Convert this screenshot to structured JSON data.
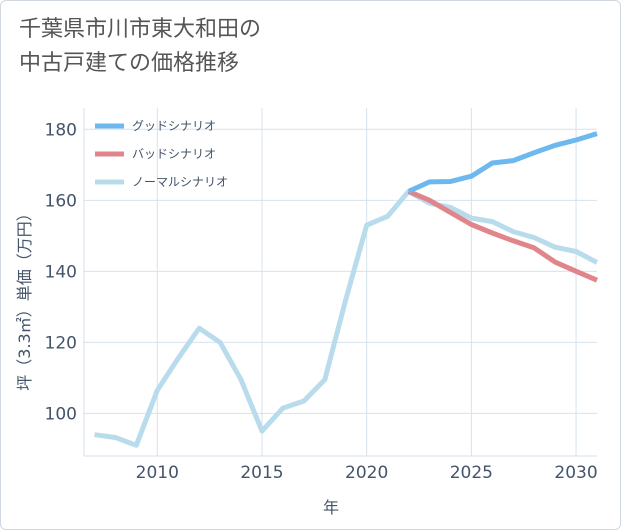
{
  "chart_data": {
    "type": "line",
    "title_lines": [
      "千葉県市川市東大和田の",
      "中古戸建ての価格推移"
    ],
    "xlabel": "年",
    "ylabel": "坪（3.3㎡）単価（万円）",
    "xlim": [
      2006.5,
      2031
    ],
    "ylim": [
      88,
      186
    ],
    "xticks": [
      2010,
      2015,
      2020,
      2025,
      2030
    ],
    "yticks": [
      100,
      120,
      140,
      160,
      180
    ],
    "grid": true,
    "legend_position": "top-left",
    "series": [
      {
        "name": "グッドシナリオ",
        "color": "#6db8ee",
        "x": [
          2022,
          2023,
          2024,
          2025,
          2026,
          2027,
          2028,
          2029,
          2030,
          2031
        ],
        "y": [
          162.5,
          165.2,
          165.3,
          166.8,
          170.5,
          171.2,
          173.4,
          175.5,
          177.0,
          178.8
        ]
      },
      {
        "name": "バッドシナリオ",
        "color": "#e0868b",
        "x": [
          2022,
          2023,
          2024,
          2025,
          2026,
          2027,
          2028,
          2029,
          2030,
          2031
        ],
        "y": [
          162.5,
          160.0,
          156.6,
          153.2,
          150.8,
          148.6,
          146.6,
          142.6,
          140.0,
          137.5
        ]
      },
      {
        "name": "ノーマルシナリオ",
        "color": "#b9dcec",
        "x": [
          2007,
          2008,
          2009,
          2010,
          2011,
          2012,
          2013,
          2014,
          2015,
          2016,
          2017,
          2018,
          2019,
          2020,
          2021,
          2022,
          2023,
          2024,
          2025,
          2026,
          2027,
          2028,
          2029,
          2030,
          2031
        ],
        "y": [
          94.0,
          93.2,
          91.0,
          106.5,
          115.5,
          124.0,
          120.0,
          109.5,
          95.0,
          101.5,
          103.5,
          109.5,
          132.0,
          153.0,
          155.5,
          162.5,
          159.2,
          158.0,
          155.0,
          154.0,
          151.2,
          149.5,
          146.8,
          145.6,
          142.5
        ]
      }
    ]
  }
}
